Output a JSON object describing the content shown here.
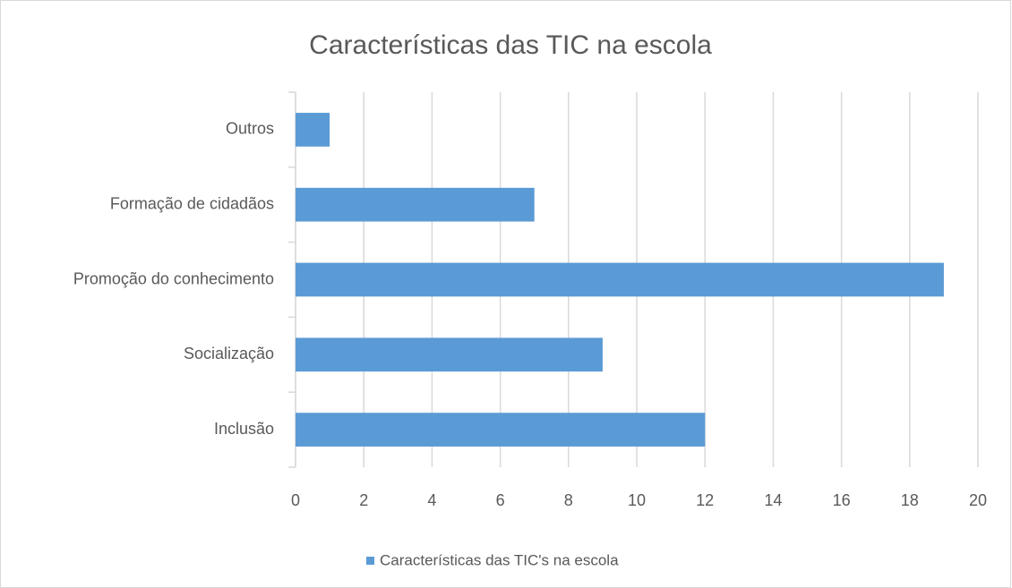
{
  "chart_data": {
    "type": "bar",
    "orientation": "horizontal",
    "title": "Características das TIC na escola",
    "categories": [
      "Inclusão",
      "Socialização",
      "Promoção do conhecimento",
      "Formação de cidadãos",
      "Outros"
    ],
    "series": [
      {
        "name": "Características das TIC's na escola",
        "color": "#5b9bd5",
        "values": [
          12,
          9,
          19,
          7,
          1
        ]
      }
    ],
    "xlim": [
      0,
      20
    ],
    "xticks": [
      0,
      2,
      4,
      6,
      8,
      10,
      12,
      14,
      16,
      18,
      20
    ],
    "grid": true,
    "legend": "bottom"
  }
}
